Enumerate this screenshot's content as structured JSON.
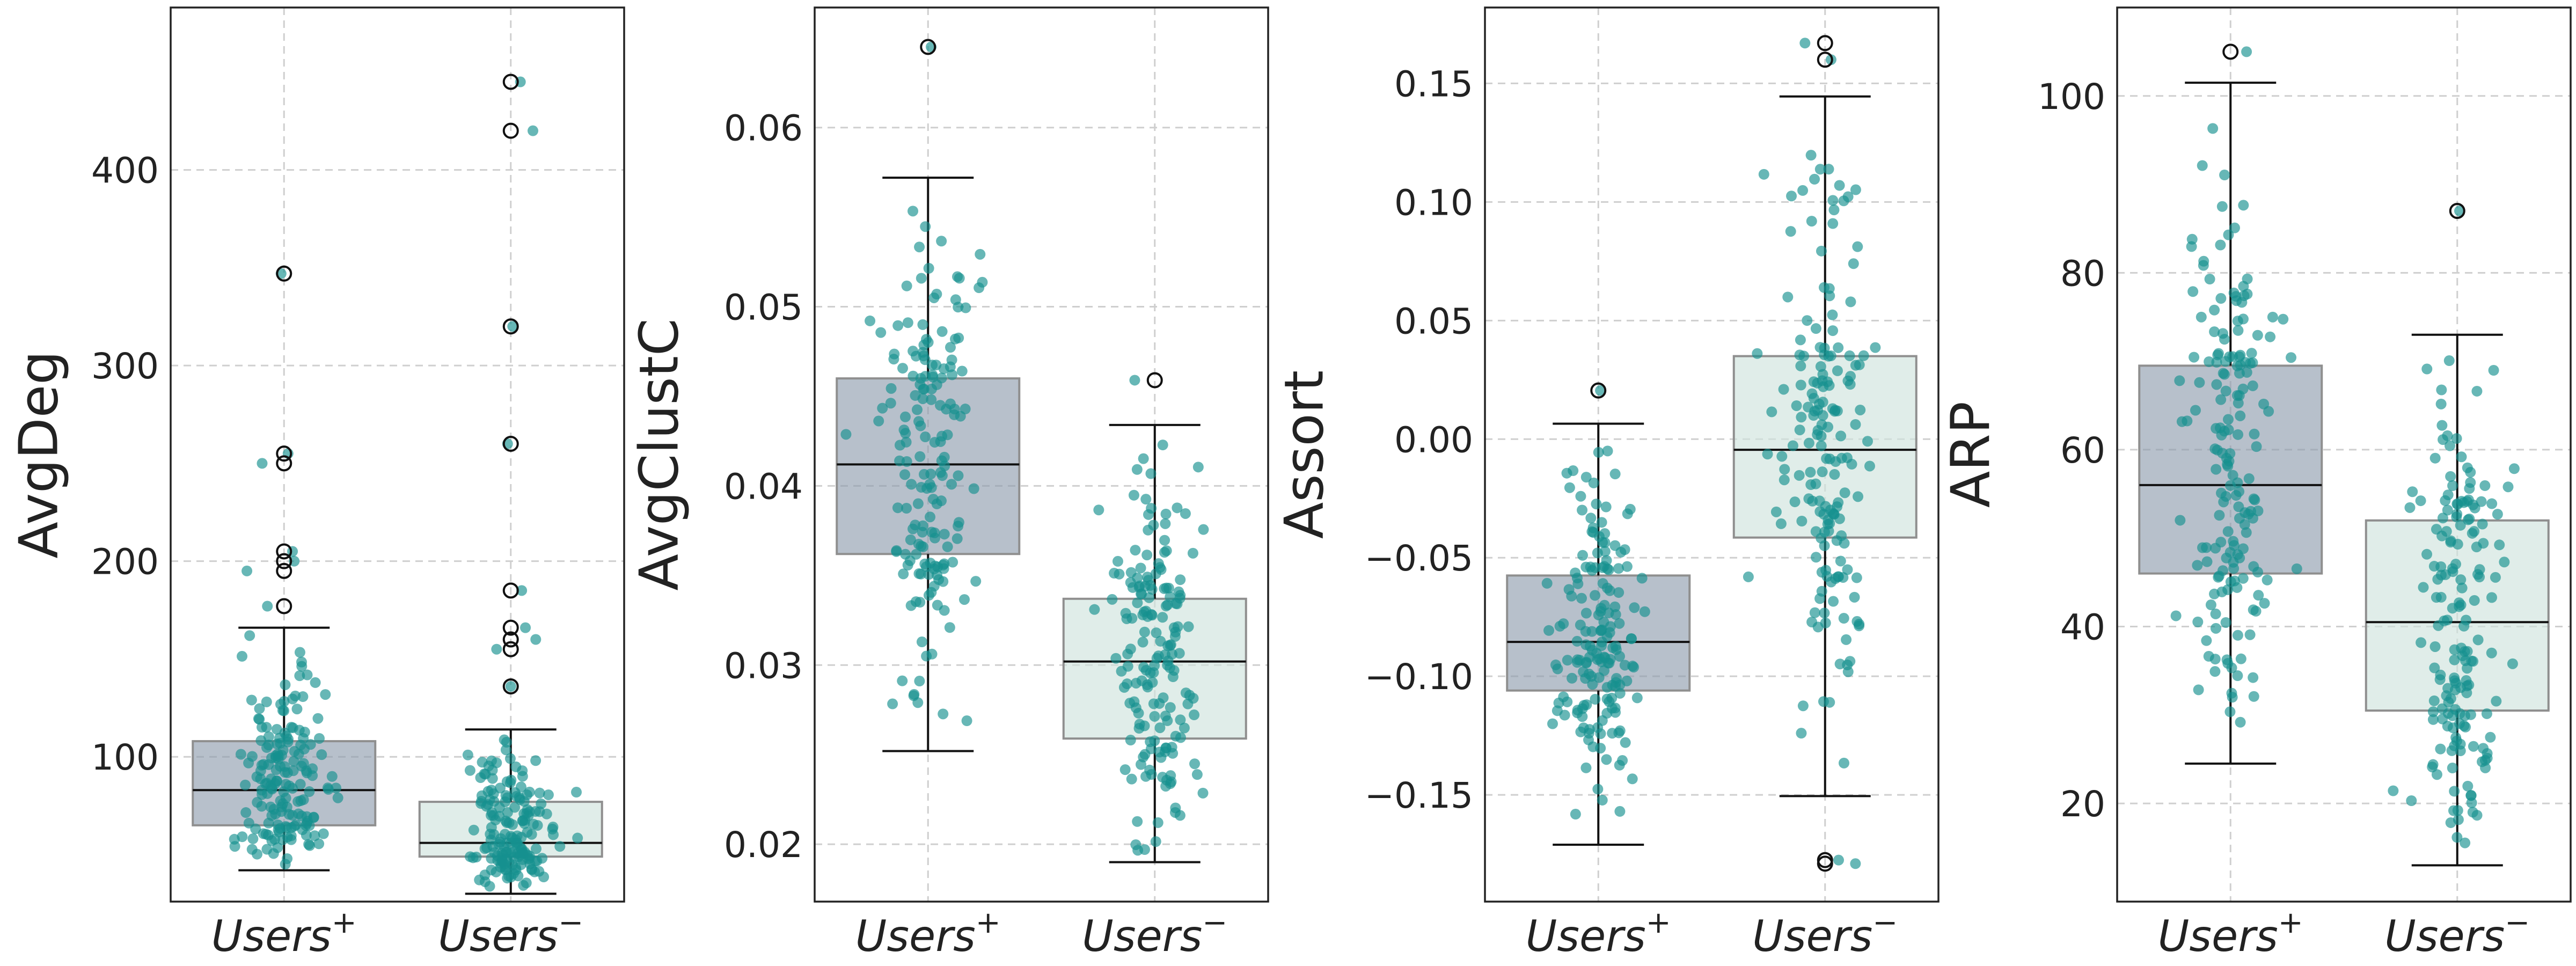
{
  "colors": {
    "users_plus_box": "#8a99ab",
    "users_minus_box": "#cfe3dd",
    "points": "#16908f",
    "grid": "#cfcfcf",
    "frame": "#222222"
  },
  "chart_data": [
    {
      "type": "box",
      "ylabel": "AvgDeg",
      "categories": [
        "Users$^+$",
        "Users$^-$"
      ],
      "category_labels": [
        {
          "base": "Users",
          "sup": "+"
        },
        {
          "base": "Users",
          "sup": "−"
        }
      ],
      "ylim": [
        26,
        483
      ],
      "yticks": [
        100,
        200,
        300,
        400
      ],
      "ytick_labels": [
        "100",
        "200",
        "300",
        "400"
      ],
      "grid": true,
      "boxes": [
        {
          "q1": 65,
          "median": 83,
          "q3": 108,
          "whisker_low": 42,
          "whisker_high": 166,
          "outliers": [
            177,
            195,
            200,
            205,
            250,
            255,
            347
          ]
        },
        {
          "q1": 49,
          "median": 56,
          "q3": 77,
          "whisker_low": 30,
          "whisker_high": 114,
          "outliers": [
            136,
            155,
            160,
            166,
            185,
            260,
            320,
            420,
            445
          ]
        }
      ]
    },
    {
      "type": "box",
      "ylabel": "AvgClustC",
      "categories": [
        "Users$^+$",
        "Users$^-$"
      ],
      "category_labels": [
        {
          "base": "Users",
          "sup": "+"
        },
        {
          "base": "Users",
          "sup": "−"
        }
      ],
      "ylim": [
        0.0168,
        0.0667
      ],
      "yticks": [
        0.02,
        0.03,
        0.04,
        0.05,
        0.06
      ],
      "ytick_labels": [
        "0.02",
        "0.03",
        "0.04",
        "0.05",
        "0.06"
      ],
      "grid": true,
      "boxes": [
        {
          "q1": 0.0362,
          "median": 0.0412,
          "q3": 0.046,
          "whisker_low": 0.0252,
          "whisker_high": 0.0572,
          "outliers": [
            0.0645
          ]
        },
        {
          "q1": 0.0259,
          "median": 0.0302,
          "q3": 0.0337,
          "whisker_low": 0.019,
          "whisker_high": 0.0434,
          "outliers": [
            0.0459
          ]
        }
      ]
    },
    {
      "type": "box",
      "ylabel": "Assort",
      "categories": [
        "Users$^+$",
        "Users$^-$"
      ],
      "category_labels": [
        {
          "base": "Users",
          "sup": "+"
        },
        {
          "base": "Users",
          "sup": "−"
        }
      ],
      "ylim": [
        -0.195,
        0.182
      ],
      "yticks": [
        -0.15,
        -0.1,
        -0.05,
        0.0,
        0.05,
        0.1,
        0.15
      ],
      "ytick_labels": [
        "−0.15",
        "−0.10",
        "−0.05",
        "0.00",
        "0.05",
        "0.10",
        "0.15"
      ],
      "grid": true,
      "boxes": [
        {
          "q1": -0.106,
          "median": -0.0855,
          "q3": -0.0575,
          "whisker_low": -0.171,
          "whisker_high": 0.0065,
          "outliers": [
            0.0205
          ]
        },
        {
          "q1": -0.0415,
          "median": -0.0045,
          "q3": 0.035,
          "whisker_low": -0.1505,
          "whisker_high": 0.1445,
          "outliers": [
            0.16,
            0.167,
            -0.1775,
            -0.179
          ]
        }
      ]
    },
    {
      "type": "box",
      "ylabel": "ARP",
      "categories": [
        "Users$^+$",
        "Users$^-$"
      ],
      "category_labels": [
        {
          "base": "Users",
          "sup": "+"
        },
        {
          "base": "Users",
          "sup": "−"
        }
      ],
      "ylim": [
        8.9,
        110
      ],
      "yticks": [
        20,
        40,
        60,
        80,
        100
      ],
      "ytick_labels": [
        "20",
        "40",
        "60",
        "80",
        "100"
      ],
      "grid": true,
      "boxes": [
        {
          "q1": 46,
          "median": 56,
          "q3": 69.5,
          "whisker_low": 24.5,
          "whisker_high": 101.5,
          "outliers": [
            105
          ]
        },
        {
          "q1": 30.5,
          "median": 40.5,
          "q3": 52,
          "whisker_low": 13,
          "whisker_high": 73,
          "outliers": [
            87
          ]
        }
      ]
    }
  ]
}
